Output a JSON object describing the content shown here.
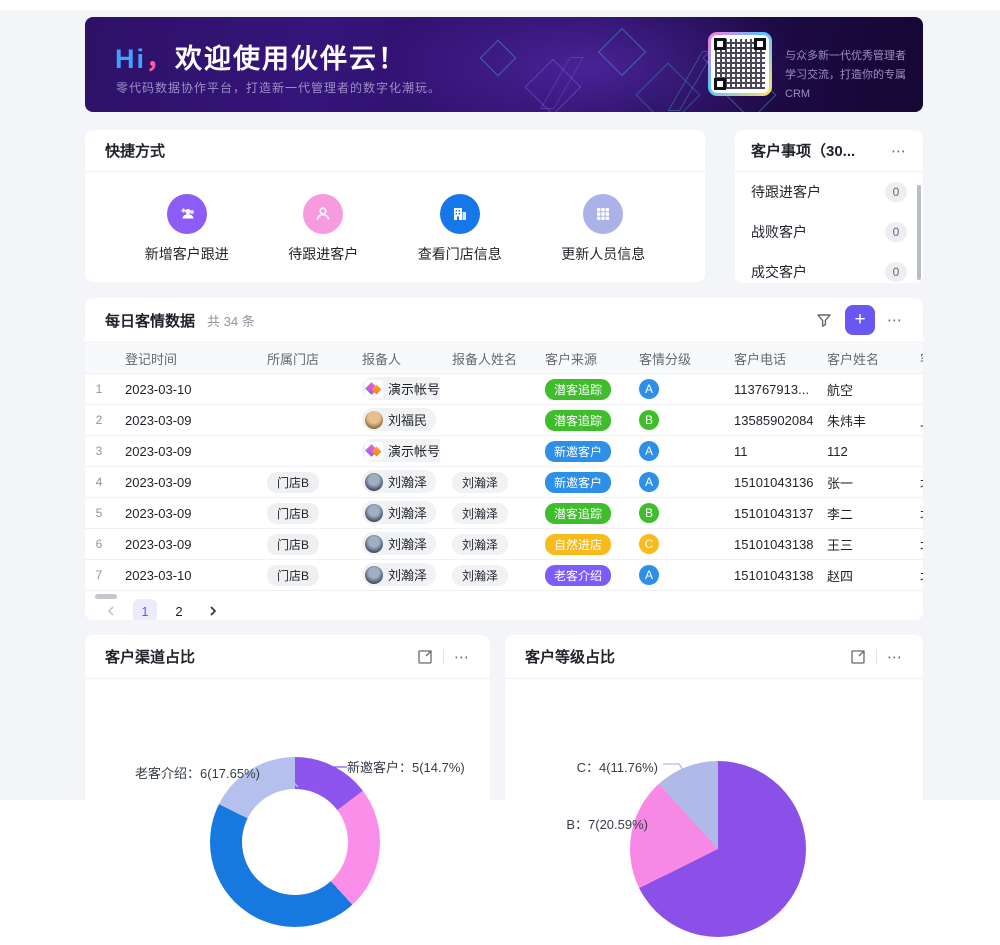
{
  "icons": {
    "more": "⋯",
    "plus": "+"
  },
  "banner": {
    "title_hi": "Hi",
    "title_comma": "，",
    "title_rest": "欢迎使用伙伴云！",
    "subtitle": "零代码数据协作平台，打造新一代管理者的数字化潮玩。",
    "qr_caption_line1": "与众多新一代优秀管理者",
    "qr_caption_line2": "学习交流，打造你的专属CRM"
  },
  "quick_panel": {
    "title": "快捷方式",
    "items": [
      {
        "label": "新增客户跟进",
        "icon": "user-plus-icon",
        "color": "#8c5cf6"
      },
      {
        "label": "待跟进客户",
        "icon": "user-icon",
        "color": "#f79ae0"
      },
      {
        "label": "查看门店信息",
        "icon": "building-icon",
        "color": "#1677e8"
      },
      {
        "label": "更新人员信息",
        "icon": "grid-icon",
        "color": "#abb2e8"
      }
    ]
  },
  "events_panel": {
    "title": "客户事项（30...",
    "items": [
      {
        "label": "待跟进客户",
        "count": "0"
      },
      {
        "label": "战败客户",
        "count": "0"
      },
      {
        "label": "成交客户",
        "count": "0"
      }
    ]
  },
  "table_panel": {
    "title": "每日客情数据",
    "count_text": "共 34 条",
    "columns": [
      "登记时间",
      "所属门店",
      "报备人",
      "报备人姓名",
      "客户来源",
      "客情分级",
      "客户电话",
      "客户姓名",
      "客"
    ],
    "source_colors": {
      "潜客追踪": "#3fbd2c",
      "新邀客户": "#2e8fe8",
      "自然进店": "#f8bb1c",
      "老客介绍": "#7c5cfa"
    },
    "grade_colors": {
      "A": "#2e8fe8",
      "B": "#3fbd2c",
      "C": "#f8bb1c"
    },
    "rows": [
      {
        "num": "1",
        "date": "2023-03-10",
        "store": "",
        "reporter": "演示帐号",
        "avatar": "logo",
        "report_name": "",
        "source": "潜客追踪",
        "grade": "A",
        "phone": "113767913...",
        "customer": "航空",
        "extra": ""
      },
      {
        "num": "2",
        "date": "2023-03-09",
        "store": "",
        "reporter": "刘福民",
        "avatar": "photo1",
        "report_name": "",
        "source": "潜客追踪",
        "grade": "B",
        "phone": "13585902084",
        "customer": "朱炜丰",
        "extra": "上"
      },
      {
        "num": "3",
        "date": "2023-03-09",
        "store": "",
        "reporter": "演示帐号",
        "avatar": "logo",
        "report_name": "",
        "source": "新邀客户",
        "grade": "A",
        "phone": "11",
        "customer": "112",
        "extra": ""
      },
      {
        "num": "4",
        "date": "2023-03-09",
        "store": "门店B",
        "reporter": "刘瀚泽",
        "avatar": "photo2",
        "report_name": "刘瀚泽",
        "source": "新邀客户",
        "grade": "A",
        "phone": "15101043136",
        "customer": "张一",
        "extra": "北"
      },
      {
        "num": "5",
        "date": "2023-03-09",
        "store": "门店B",
        "reporter": "刘瀚泽",
        "avatar": "photo2",
        "report_name": "刘瀚泽",
        "source": "潜客追踪",
        "grade": "B",
        "phone": "15101043137",
        "customer": "李二",
        "extra": "北"
      },
      {
        "num": "6",
        "date": "2023-03-09",
        "store": "门店B",
        "reporter": "刘瀚泽",
        "avatar": "photo2",
        "report_name": "刘瀚泽",
        "source": "自然进店",
        "grade": "C",
        "phone": "15101043138",
        "customer": "王三",
        "extra": "北"
      },
      {
        "num": "7",
        "date": "2023-03-10",
        "store": "门店B",
        "reporter": "刘瀚泽",
        "avatar": "photo2",
        "report_name": "刘瀚泽",
        "source": "老客介绍",
        "grade": "A",
        "phone": "15101043138",
        "customer": "赵四",
        "extra": "北"
      }
    ],
    "pagination": {
      "pages": [
        "1",
        "2"
      ],
      "active": "1"
    }
  },
  "chart_data": [
    {
      "type": "pie",
      "variant": "donut",
      "title": "客户渠道占比",
      "total": 34,
      "slices": [
        {
          "label": "新邀客户",
          "value": 5,
          "pct": 14.7,
          "color": "#8d55ee",
          "callout": "新邀客户：5(14.7%)"
        },
        {
          "label": "",
          "pct": 23.53,
          "color": "#fa8ee9",
          "callout": ""
        },
        {
          "label": "",
          "pct": 44.12,
          "color": "#1778e0",
          "callout": ""
        },
        {
          "label": "老客介绍",
          "value": 6,
          "pct": 17.65,
          "color": "#b6c0ec",
          "callout": "老客介绍：6(17.65%)"
        }
      ]
    },
    {
      "type": "pie",
      "variant": "pie",
      "title": "客户等级占比",
      "total": 34,
      "slices": [
        {
          "label": "A",
          "pct": 67.65,
          "color": "#8a50e8",
          "callout": ""
        },
        {
          "label": "B",
          "value": 7,
          "pct": 20.59,
          "color": "#f788e6",
          "callout": "B：7(20.59%)"
        },
        {
          "label": "C",
          "value": 4,
          "pct": 11.76,
          "color": "#afbae8",
          "callout": "C：4(11.76%)"
        }
      ]
    }
  ]
}
